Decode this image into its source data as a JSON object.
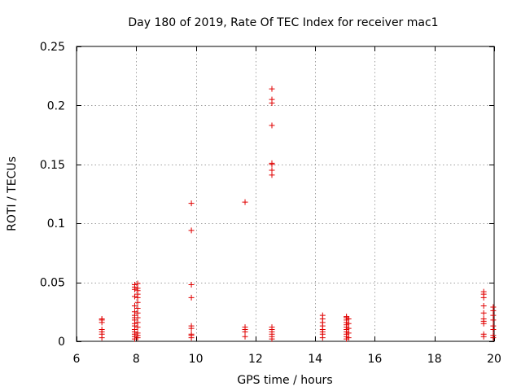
{
  "chart_data": {
    "type": "scatter",
    "title": "Day 180 of 2019, Rate Of TEC Index for receiver mac1",
    "xlabel": "GPS time / hours",
    "ylabel": "ROTI / TECUs",
    "xlim": [
      6,
      20
    ],
    "ylim": [
      0,
      0.25
    ],
    "grid": true,
    "marker": "plus",
    "x_ticks": [
      6,
      8,
      10,
      12,
      14,
      16,
      18,
      20
    ],
    "x_tick_labels": [
      "6",
      "8",
      "10",
      "12",
      "14",
      "16",
      "18",
      "20"
    ],
    "y_ticks": [
      0,
      0.05,
      0.1,
      0.15,
      0.2,
      0.25
    ],
    "y_tick_labels": [
      "0",
      "0.05",
      "0.1",
      "0.15",
      "0.2",
      "0.25"
    ],
    "series": [
      {
        "name": "ROTI",
        "color": "#e00000",
        "points": [
          [
            6.85,
            0.003
          ],
          [
            6.85,
            0.006
          ],
          [
            6.85,
            0.008
          ],
          [
            6.85,
            0.01
          ],
          [
            6.85,
            0.016
          ],
          [
            6.85,
            0.018
          ],
          [
            6.85,
            0.019
          ],
          [
            7.95,
            0.002
          ],
          [
            7.95,
            0.004
          ],
          [
            7.95,
            0.006
          ],
          [
            7.95,
            0.008
          ],
          [
            7.95,
            0.01
          ],
          [
            7.95,
            0.013
          ],
          [
            7.95,
            0.015
          ],
          [
            7.95,
            0.018
          ],
          [
            7.95,
            0.02
          ],
          [
            7.95,
            0.022
          ],
          [
            7.95,
            0.025
          ],
          [
            7.95,
            0.03
          ],
          [
            7.95,
            0.038
          ],
          [
            7.95,
            0.044
          ],
          [
            7.95,
            0.046
          ],
          [
            7.95,
            0.048
          ],
          [
            8.05,
            0.003
          ],
          [
            8.05,
            0.005
          ],
          [
            8.05,
            0.007
          ],
          [
            8.05,
            0.012
          ],
          [
            8.05,
            0.016
          ],
          [
            8.05,
            0.02
          ],
          [
            8.05,
            0.024
          ],
          [
            8.05,
            0.028
          ],
          [
            8.05,
            0.033
          ],
          [
            8.05,
            0.037
          ],
          [
            8.05,
            0.04
          ],
          [
            8.05,
            0.043
          ],
          [
            8.05,
            0.045
          ],
          [
            8.05,
            0.049
          ],
          [
            9.85,
            0.003
          ],
          [
            9.85,
            0.005
          ],
          [
            9.85,
            0.006
          ],
          [
            9.85,
            0.011
          ],
          [
            9.85,
            0.013
          ],
          [
            9.85,
            0.037
          ],
          [
            9.85,
            0.048
          ],
          [
            9.85,
            0.094
          ],
          [
            9.85,
            0.117
          ],
          [
            11.65,
            0.004
          ],
          [
            11.65,
            0.008
          ],
          [
            11.65,
            0.01
          ],
          [
            11.65,
            0.012
          ],
          [
            11.65,
            0.118
          ],
          [
            12.55,
            0.002
          ],
          [
            12.55,
            0.004
          ],
          [
            12.55,
            0.006
          ],
          [
            12.55,
            0.008
          ],
          [
            12.55,
            0.01
          ],
          [
            12.55,
            0.012
          ],
          [
            12.55,
            0.141
          ],
          [
            12.55,
            0.145
          ],
          [
            12.55,
            0.15
          ],
          [
            12.55,
            0.151
          ],
          [
            12.55,
            0.183
          ],
          [
            12.55,
            0.202
          ],
          [
            12.55,
            0.205
          ],
          [
            12.55,
            0.214
          ],
          [
            14.25,
            0.003
          ],
          [
            14.25,
            0.006
          ],
          [
            14.25,
            0.008
          ],
          [
            14.25,
            0.01
          ],
          [
            14.25,
            0.013
          ],
          [
            14.25,
            0.016
          ],
          [
            14.25,
            0.019
          ],
          [
            14.25,
            0.022
          ],
          [
            15.05,
            0.002
          ],
          [
            15.05,
            0.004
          ],
          [
            15.05,
            0.006
          ],
          [
            15.05,
            0.008
          ],
          [
            15.05,
            0.01
          ],
          [
            15.05,
            0.012
          ],
          [
            15.05,
            0.014
          ],
          [
            15.05,
            0.016
          ],
          [
            15.05,
            0.018
          ],
          [
            15.05,
            0.02
          ],
          [
            15.05,
            0.021
          ],
          [
            15.12,
            0.003
          ],
          [
            15.12,
            0.007
          ],
          [
            15.12,
            0.011
          ],
          [
            15.12,
            0.015
          ],
          [
            15.12,
            0.019
          ],
          [
            19.65,
            0.004
          ],
          [
            19.65,
            0.006
          ],
          [
            19.65,
            0.015
          ],
          [
            19.65,
            0.017
          ],
          [
            19.65,
            0.019
          ],
          [
            19.65,
            0.024
          ],
          [
            19.65,
            0.03
          ],
          [
            19.65,
            0.037
          ],
          [
            19.65,
            0.04
          ],
          [
            19.65,
            0.042
          ],
          [
            19.97,
            0.003
          ],
          [
            19.97,
            0.005
          ],
          [
            19.97,
            0.01
          ],
          [
            19.97,
            0.013
          ],
          [
            19.97,
            0.018
          ],
          [
            19.97,
            0.022
          ],
          [
            19.97,
            0.026
          ],
          [
            19.97,
            0.029
          ]
        ]
      }
    ]
  }
}
